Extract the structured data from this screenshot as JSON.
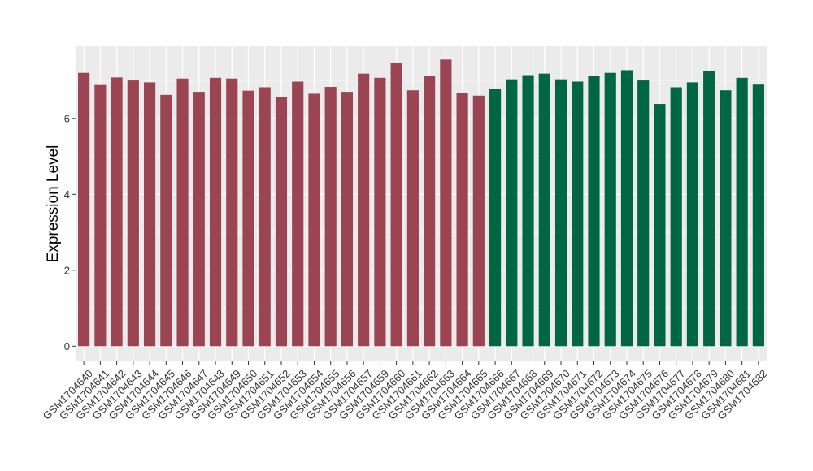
{
  "chart_data": {
    "type": "bar",
    "title": "",
    "xlabel": "",
    "ylabel": "Expression Level",
    "ylim": [
      -0.4,
      7.9
    ],
    "yticks": [
      0,
      2,
      4,
      6
    ],
    "grid": true,
    "background": "#ebebeb",
    "gridline_color": "#ffffff",
    "categories": [
      "GSM1704640",
      "GSM1704641",
      "GSM1704642",
      "GSM1704643",
      "GSM1704644",
      "GSM1704645",
      "GSM1704646",
      "GSM1704647",
      "GSM1704648",
      "GSM1704649",
      "GSM1704650",
      "GSM1704651",
      "GSM1704652",
      "GSM1704653",
      "GSM1704654",
      "GSM1704655",
      "GSM1704656",
      "GSM1704657",
      "GSM1704659",
      "GSM1704660",
      "GSM1704661",
      "GSM1704662",
      "GSM1704663",
      "GSM1704664",
      "GSM1704665",
      "GSM1704666",
      "GSM1704667",
      "GSM1704668",
      "GSM1704669",
      "GSM1704670",
      "GSM1704671",
      "GSM1704672",
      "GSM1704673",
      "GSM1704674",
      "GSM1704675",
      "GSM1704676",
      "GSM1704677",
      "GSM1704678",
      "GSM1704679",
      "GSM1704680",
      "GSM1704681",
      "GSM1704682"
    ],
    "values": [
      7.2,
      6.88,
      7.08,
      7.0,
      6.95,
      6.62,
      7.05,
      6.7,
      7.07,
      7.05,
      6.73,
      6.82,
      6.57,
      6.97,
      6.65,
      6.83,
      6.7,
      7.18,
      7.07,
      7.46,
      6.74,
      7.12,
      7.55,
      6.68,
      6.6,
      6.78,
      7.03,
      7.14,
      7.18,
      7.03,
      6.97,
      7.12,
      7.2,
      7.27,
      7.0,
      6.38,
      6.82,
      6.95,
      7.24,
      6.74,
      7.07,
      6.89
    ],
    "colors": [
      "#9b4452",
      "#9b4452",
      "#9b4452",
      "#9b4452",
      "#9b4452",
      "#9b4452",
      "#9b4452",
      "#9b4452",
      "#9b4452",
      "#9b4452",
      "#9b4452",
      "#9b4452",
      "#9b4452",
      "#9b4452",
      "#9b4452",
      "#9b4452",
      "#9b4452",
      "#9b4452",
      "#9b4452",
      "#9b4452",
      "#9b4452",
      "#9b4452",
      "#9b4452",
      "#9b4452",
      "#9b4452",
      "#006644",
      "#006644",
      "#006644",
      "#006644",
      "#006644",
      "#006644",
      "#006644",
      "#006644",
      "#006644",
      "#006644",
      "#006644",
      "#006644",
      "#006644",
      "#006644",
      "#006644",
      "#006644",
      "#006644"
    ]
  }
}
